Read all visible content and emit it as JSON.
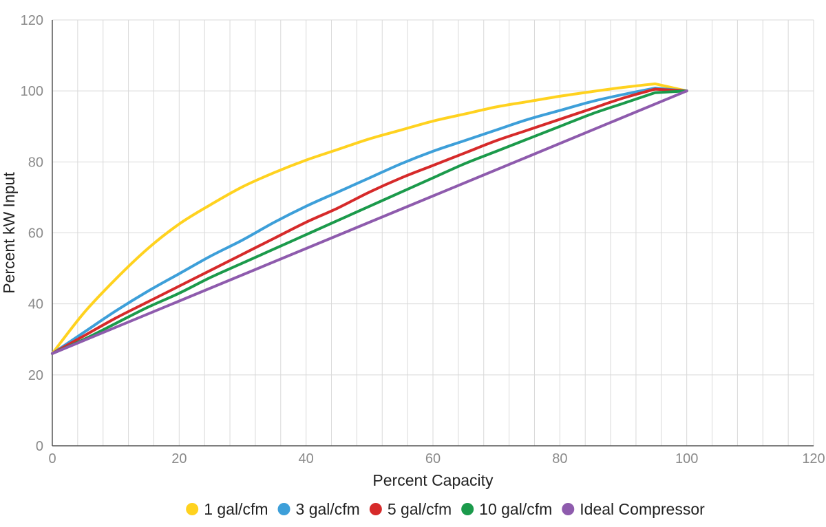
{
  "chart_data": {
    "type": "line",
    "title": "",
    "xlabel": "Percent Capacity",
    "ylabel": "Percent kW Input",
    "xlim": [
      0,
      120
    ],
    "ylim": [
      0,
      120
    ],
    "x_ticks": [
      0,
      20,
      40,
      60,
      80,
      100,
      120
    ],
    "y_ticks": [
      0,
      20,
      40,
      60,
      80,
      100,
      120
    ],
    "x_minor_step": 4,
    "grid": true,
    "legend_position": "bottom",
    "series": [
      {
        "name": "1 gal/cfm",
        "color": "#FFD21F",
        "x": [
          0,
          5,
          10,
          15,
          20,
          25,
          30,
          35,
          40,
          45,
          50,
          55,
          60,
          65,
          70,
          75,
          80,
          85,
          90,
          95,
          100
        ],
        "y": [
          26,
          37.5,
          47,
          55.5,
          62.5,
          68,
          73,
          77,
          80.5,
          83.5,
          86.5,
          89,
          91.5,
          93.5,
          95.5,
          97,
          98.5,
          99.8,
          101,
          102,
          100
        ]
      },
      {
        "name": "3 gal/cfm",
        "color": "#3D9FD9",
        "x": [
          0,
          5,
          10,
          15,
          20,
          25,
          30,
          35,
          40,
          45,
          50,
          55,
          60,
          65,
          70,
          75,
          80,
          85,
          90,
          95,
          100
        ],
        "y": [
          26,
          32,
          38,
          43.5,
          48.5,
          53.5,
          58,
          63,
          67.5,
          71.5,
          75.5,
          79.5,
          83,
          86,
          89,
          92,
          94.5,
          97,
          99,
          100.8,
          100
        ]
      },
      {
        "name": "5 gal/cfm",
        "color": "#D62A2A",
        "x": [
          0,
          5,
          10,
          15,
          20,
          25,
          30,
          35,
          40,
          45,
          50,
          55,
          60,
          65,
          70,
          75,
          80,
          85,
          90,
          95,
          100
        ],
        "y": [
          26,
          31,
          36,
          40.5,
          45,
          49.5,
          54,
          58.5,
          63,
          67,
          71.5,
          75.5,
          79,
          82.5,
          86,
          89,
          92,
          95,
          98,
          100.5,
          100
        ]
      },
      {
        "name": "10 gal/cfm",
        "color": "#1B9A4B",
        "x": [
          0,
          5,
          10,
          15,
          20,
          25,
          30,
          35,
          40,
          45,
          50,
          55,
          60,
          65,
          70,
          75,
          80,
          85,
          90,
          95,
          100
        ],
        "y": [
          26,
          30,
          34.5,
          39,
          43,
          47.5,
          51.5,
          55.5,
          59.5,
          63.5,
          67.5,
          71.5,
          75.5,
          79.5,
          83,
          86.5,
          90,
          93.5,
          96.5,
          99.5,
          100
        ]
      },
      {
        "name": "Ideal Compressor",
        "color": "#8E5BAD",
        "x": [
          0,
          100
        ],
        "y": [
          26,
          100
        ]
      }
    ]
  }
}
